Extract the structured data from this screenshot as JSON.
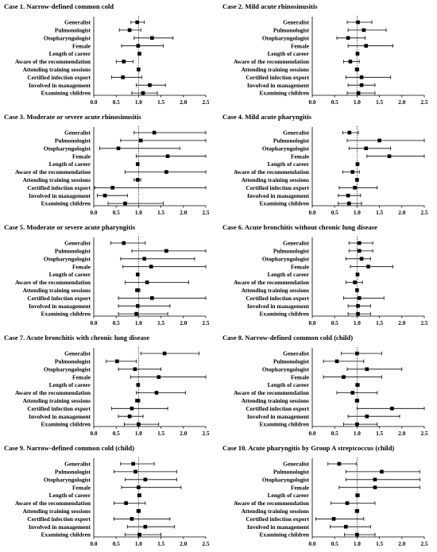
{
  "chart_data": [
    {
      "type": "forest",
      "title": "Case 1. Narrow-defined common cold",
      "categories": [
        "Generalist",
        "Pulmonologist",
        "Otopharyngologist",
        "Female",
        "Length of career",
        "Aware of the recommendation",
        "Attending training sessions",
        "Certified infection expert",
        "Involved in management",
        "Examining children"
      ],
      "estimates": [
        0.97,
        0.8,
        1.3,
        0.99,
        1.02,
        0.67,
        1.0,
        0.65,
        1.25,
        1.1
      ],
      "ci_lower": [
        0.83,
        0.57,
        0.9,
        0.62,
        0.99,
        0.5,
        0.97,
        0.4,
        0.95,
        0.85
      ],
      "ci_upper": [
        1.13,
        1.05,
        1.77,
        1.55,
        1.05,
        0.88,
        1.03,
        1.07,
        1.6,
        1.42
      ],
      "xlim": [
        0,
        2.5
      ],
      "xticks": [
        "0.0",
        "0.5",
        "1.0",
        "1.5",
        "2.0",
        "2.5"
      ],
      "reference_line": 1.0
    },
    {
      "type": "forest",
      "title": "Case 2. Mild acute rhinosinusitis",
      "categories": [
        "Generalist",
        "Pulmonologist",
        "Otopharyngologist",
        "Female",
        "Length of career",
        "Aware of the recommendation",
        "Attending training sessions",
        "Certified infection expert",
        "Involved in management",
        "Examining children"
      ],
      "estimates": [
        1.02,
        1.15,
        0.8,
        1.2,
        1.01,
        0.85,
        1.0,
        1.1,
        1.1,
        1.03
      ],
      "ci_lower": [
        0.78,
        0.8,
        0.55,
        0.8,
        0.98,
        0.7,
        0.96,
        0.75,
        0.8,
        0.78
      ],
      "ci_upper": [
        1.33,
        1.65,
        1.18,
        1.8,
        1.04,
        1.05,
        1.04,
        1.75,
        1.4,
        1.4
      ],
      "xlim": [
        0,
        2.5
      ],
      "xticks": [
        "0.0",
        "0.5",
        "1.0",
        "1.5",
        "2.0",
        "2.5"
      ],
      "reference_line": 1.0
    },
    {
      "type": "forest",
      "title": "Case 3. Moderate or severe acute rhinosinusitis",
      "categories": [
        "Generalist",
        "Pulmonologist",
        "Otopharyngologist",
        "Female",
        "Length of career",
        "Aware of the recommendation",
        "Attending training sessions",
        "Certified infection expert",
        "Involved in management",
        "Examining children"
      ],
      "estimates": [
        1.35,
        1.05,
        0.55,
        1.65,
        0.98,
        1.62,
        0.98,
        0.42,
        0.25,
        0.7
      ],
      "ci_lower": [
        0.9,
        0.6,
        0.13,
        0.95,
        0.95,
        0.7,
        0.9,
        0.02,
        0.08,
        0.32
      ],
      "ci_upper": [
        2.5,
        2.5,
        1.92,
        2.5,
        1.01,
        2.5,
        1.05,
        2.5,
        0.75,
        1.55
      ],
      "xlim": [
        0,
        2.5
      ],
      "xticks": [
        "0.0",
        "0.5",
        "1.0",
        "1.5",
        "2.0",
        "2.5"
      ],
      "reference_line": 1.0
    },
    {
      "type": "forest",
      "title": "Case 4. Mild acute pharyngitis",
      "categories": [
        "Generalist",
        "Pulmonologist",
        "Otopharyngologist",
        "Female",
        "Length of career",
        "Aware of the recommendation",
        "Attending training sessions",
        "Certified infection expert",
        "Involved in management",
        "Examining children"
      ],
      "estimates": [
        0.83,
        1.5,
        1.2,
        1.72,
        1.01,
        0.9,
        1.0,
        0.95,
        0.8,
        0.82
      ],
      "ci_lower": [
        0.68,
        0.78,
        0.82,
        1.22,
        0.98,
        0.68,
        0.97,
        0.6,
        0.58,
        0.58
      ],
      "ci_upper": [
        1.03,
        2.5,
        1.75,
        2.5,
        1.04,
        1.05,
        1.03,
        1.45,
        1.08,
        1.1
      ],
      "xlim": [
        0,
        2.5
      ],
      "xticks": [
        "0.0",
        "0.5",
        "1.0",
        "1.5",
        "2.0",
        "2.5"
      ],
      "reference_line": 1.0
    },
    {
      "type": "forest",
      "title": "Case 5. Moderate or severe acute pharyngitis",
      "categories": [
        "Generalist",
        "Pulmonologist",
        "Otopharyngologist",
        "Female",
        "Length of career",
        "Aware of the recommendation",
        "Attending training sessions",
        "Certified infection expert",
        "Involved in management",
        "Examining children"
      ],
      "estimates": [
        0.67,
        1.62,
        1.13,
        1.28,
        0.98,
        1.19,
        0.98,
        1.3,
        0.98,
        0.95
      ],
      "ci_lower": [
        0.38,
        0.85,
        0.6,
        0.65,
        0.95,
        0.7,
        0.93,
        0.55,
        0.55,
        0.55
      ],
      "ci_upper": [
        1.15,
        2.5,
        2.25,
        2.5,
        1.01,
        2.12,
        1.03,
        2.5,
        1.7,
        1.65
      ],
      "xlim": [
        0,
        2.5
      ],
      "xticks": [
        "0.0",
        "0.5",
        "1.0",
        "1.5",
        "2.0",
        "2.5"
      ],
      "reference_line": 1.0
    },
    {
      "type": "forest",
      "title": "Case 6. Acute bronchitis without chronic lung disease",
      "categories": [
        "Generalist",
        "Pulmonologist",
        "Otopharyngologist",
        "Female",
        "Length of career",
        "Aware of the recommendation",
        "Attending training sessions",
        "Certified infection expert",
        "Involved in management",
        "Examining children"
      ],
      "estimates": [
        1.05,
        1.05,
        1.1,
        1.25,
        1.01,
        0.95,
        1.0,
        1.05,
        1.02,
        1.02
      ],
      "ci_lower": [
        0.82,
        0.82,
        0.75,
        0.85,
        0.98,
        0.75,
        0.97,
        0.7,
        0.8,
        0.8
      ],
      "ci_upper": [
        1.35,
        1.35,
        1.3,
        1.8,
        1.04,
        1.12,
        1.03,
        1.6,
        1.3,
        1.3
      ],
      "xlim": [
        0,
        2.5
      ],
      "xticks": [
        "0.0",
        "0.5",
        "1.0",
        "1.5",
        "2.0",
        "2.5"
      ],
      "reference_line": 1.0
    },
    {
      "type": "forest",
      "title": "Case 7. Acute bronchitis with chronic lung disease",
      "categories": [
        "Generalist",
        "Pulmonologist",
        "Otopharyngologist",
        "Female",
        "Length of career",
        "Aware of the recommendation",
        "Attending training sessions",
        "Certified infection expert",
        "Involved in management",
        "Examining children"
      ],
      "estimates": [
        1.58,
        0.52,
        0.92,
        1.45,
        0.99,
        1.4,
        0.98,
        0.85,
        0.8,
        1.0
      ],
      "ci_lower": [
        1.05,
        0.28,
        0.55,
        0.82,
        0.96,
        0.95,
        0.93,
        0.4,
        0.55,
        0.68
      ],
      "ci_upper": [
        2.35,
        0.95,
        1.5,
        2.5,
        1.02,
        2.05,
        1.03,
        1.65,
        1.1,
        1.45
      ],
      "xlim": [
        0,
        2.5
      ],
      "xticks": [
        "0.0",
        "0.5",
        "1.0",
        "1.5",
        "2.0",
        "2.5"
      ],
      "reference_line": 1.0
    },
    {
      "type": "forest",
      "title": "Case 8. Narrow-defined common cold (child)",
      "categories": [
        "Generalist",
        "Pulmonologist",
        "Otopharyngologist",
        "Female",
        "Length of career",
        "Aware of the recommendation",
        "Attending training sessions",
        "Certified infection expert",
        "Involved in management",
        "Examining children"
      ],
      "estimates": [
        1.0,
        0.55,
        1.22,
        0.7,
        1.01,
        0.9,
        1.0,
        1.78,
        1.22,
        1.0
      ],
      "ci_lower": [
        0.65,
        0.25,
        0.78,
        0.25,
        0.97,
        0.55,
        0.96,
        1.0,
        0.8,
        0.7
      ],
      "ci_upper": [
        1.55,
        1.15,
        2.0,
        1.55,
        1.05,
        1.45,
        1.04,
        2.5,
        1.95,
        1.45
      ],
      "xlim": [
        0,
        2.5
      ],
      "xticks": [
        "0.0",
        "0.5",
        "1.0",
        "1.5",
        "2.0",
        "2.5"
      ],
      "reference_line": 1.0
    },
    {
      "type": "forest",
      "title": "Case 9. Narrow-defined common cold (child)",
      "categories": [
        "Generalist",
        "Pulmonologist",
        "Otopharyngologist",
        "Female",
        "Length of career",
        "Aware of the recommendation",
        "Attending training sessions",
        "Certified infection expert",
        "Involved in management",
        "Examining children"
      ],
      "estimates": [
        0.88,
        0.93,
        1.15,
        1.0,
        1.02,
        0.72,
        1.0,
        0.85,
        1.15,
        1.02
      ],
      "ci_lower": [
        0.6,
        0.45,
        0.7,
        0.62,
        0.98,
        0.45,
        0.96,
        0.45,
        0.75,
        0.7
      ],
      "ci_upper": [
        1.35,
        1.85,
        1.85,
        1.95,
        1.05,
        1.15,
        1.04,
        1.7,
        1.8,
        1.5
      ],
      "xlim": [
        0,
        2.5
      ],
      "xticks": [
        "0.0",
        "0.5",
        "1.0",
        "1.5",
        "2.0",
        "2.5"
      ],
      "reference_line": 1.0
    },
    {
      "type": "forest",
      "title": "Case 10. Acute pharyngitis by Group A streptcoccus (child)",
      "categories": [
        "Generalist",
        "Pulmonologist",
        "Otopharyngologist",
        "Female",
        "Length of career",
        "Aware of the recommendation",
        "Attending training sessions",
        "Certified infection expert",
        "Involved in management",
        "Examining children"
      ],
      "estimates": [
        0.6,
        1.55,
        1.4,
        1.4,
        1.01,
        0.78,
        1.0,
        0.48,
        0.75,
        1.0
      ],
      "ci_lower": [
        0.35,
        0.75,
        0.75,
        0.6,
        0.97,
        0.42,
        0.96,
        0.08,
        0.4,
        0.72
      ],
      "ci_upper": [
        0.98,
        2.4,
        2.4,
        2.4,
        1.05,
        1.4,
        1.04,
        1.15,
        1.3,
        1.4
      ],
      "xlim": [
        0,
        2.5
      ],
      "xticks": [
        "0.0",
        "0.5",
        "1.0",
        "1.5",
        "2.0",
        "2.5"
      ],
      "reference_line": 1.0
    }
  ]
}
